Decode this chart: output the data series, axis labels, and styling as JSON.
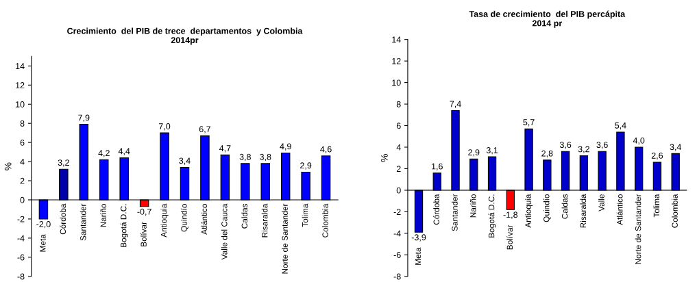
{
  "chart_data": [
    {
      "type": "bar",
      "title": "Crecimiento  del PIB de trece  departamentos  y Colombia\n2014pr",
      "ylabel": "%",
      "categories": [
        "Meta",
        "Córdoba",
        "Santander",
        "Nariño",
        "Bogotá D.C.",
        "Bolívar",
        "Antioquia",
        "Quindío",
        "Atlántico",
        "Valle del Cauca",
        "Caldas",
        "Risaralda",
        "Norte de Santander",
        "Tolima",
        "Colombia"
      ],
      "values": [
        -2.0,
        3.2,
        7.9,
        4.2,
        4.4,
        -0.7,
        7.0,
        3.4,
        6.7,
        4.7,
        3.8,
        3.8,
        4.9,
        2.9,
        4.6
      ],
      "value_labels": [
        "-2,0",
        "3,2",
        "7,9",
        "4,2",
        "4,4",
        "-0,7",
        "7,0",
        "3,4",
        "6,7",
        "4,7",
        "3,8",
        "3,8",
        "4,9",
        "2,9",
        "4,6"
      ],
      "colors": [
        "#0000ff",
        "#0000aa",
        "#0000ff",
        "#0000ff",
        "#0000ff",
        "#ff0000",
        "#0000ff",
        "#0000ff",
        "#0000ff",
        "#0000ff",
        "#0000ff",
        "#0000ff",
        "#0000ff",
        "#0000ff",
        "#0000ff"
      ],
      "ylim": [
        -8,
        15
      ],
      "yticks": [
        -8,
        -6,
        -4,
        -2,
        0,
        2,
        4,
        6,
        8,
        10,
        12,
        14
      ],
      "grid": false,
      "legend": false
    },
    {
      "type": "bar",
      "title": "Tasa de crecimiento  del PIB percápita\n2014 pr",
      "ylabel": "%",
      "categories": [
        "Meta",
        "Córdoba",
        "Santander",
        "Nariño",
        "Bogotá D.C.",
        "Bolívar",
        "Antioquia",
        "Quindío",
        "Caldas",
        "Risaralda",
        "Valle",
        "Atlántico",
        "Norte de Santander",
        "Tolima",
        "Colombia"
      ],
      "values": [
        -3.9,
        1.6,
        7.4,
        2.9,
        3.1,
        -1.8,
        5.7,
        2.8,
        3.6,
        3.2,
        3.6,
        5.4,
        4.0,
        2.6,
        3.4
      ],
      "value_labels": [
        "-3,9",
        "1,6",
        "7,4",
        "2,9",
        "3,1",
        "-1,8",
        "5,7",
        "2,8",
        "3,6",
        "3,2",
        "3,6",
        "5,4",
        "4,0",
        "2,6",
        "3,4"
      ],
      "colors": [
        "#0000cc",
        "#0000cc",
        "#0000cc",
        "#0000cc",
        "#0000cc",
        "#ff0000",
        "#0000cc",
        "#0000cc",
        "#0000cc",
        "#0000cc",
        "#0000cc",
        "#0000cc",
        "#0000cc",
        "#0000cc",
        "#0000cc"
      ],
      "ylim": [
        -8,
        14
      ],
      "yticks": [
        -8,
        -6,
        -4,
        -2,
        0,
        2,
        4,
        6,
        8,
        10,
        12,
        14
      ],
      "grid": false,
      "legend": false
    }
  ]
}
